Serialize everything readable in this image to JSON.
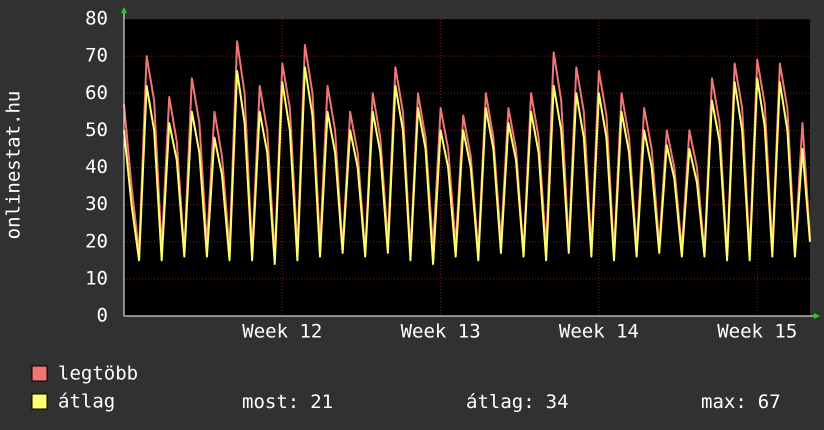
{
  "chart_data": {
    "type": "line",
    "ylabel": "onlinestat.hu",
    "xlim": [
      0,
      91
    ],
    "xticks": [
      {
        "value": 21,
        "label": "Week 12"
      },
      {
        "value": 42,
        "label": "Week 13"
      },
      {
        "value": 63,
        "label": "Week 14"
      },
      {
        "value": 84,
        "label": "Week 15"
      }
    ],
    "ylim": [
      0,
      80
    ],
    "yticks": [
      0,
      10,
      20,
      30,
      40,
      50,
      60,
      70,
      80
    ],
    "grid": true,
    "series": [
      {
        "name": "legtöbb",
        "color": "#f07575",
        "values": [
          57,
          35,
          17,
          70,
          58,
          18,
          59,
          47,
          17,
          64,
          52,
          19,
          55,
          43,
          18,
          74,
          60,
          17,
          62,
          50,
          16,
          68,
          56,
          18,
          73,
          60,
          19,
          62,
          50,
          18,
          55,
          44,
          17,
          60,
          48,
          20,
          67,
          55,
          17,
          60,
          48,
          18,
          56,
          45,
          19,
          54,
          43,
          17,
          60,
          48,
          20,
          56,
          45,
          17,
          60,
          48,
          18,
          71,
          58,
          19,
          67,
          55,
          18,
          66,
          54,
          17,
          60,
          48,
          18,
          56,
          45,
          19,
          50,
          40,
          18,
          50,
          40,
          17,
          64,
          52,
          16,
          68,
          56,
          17,
          69,
          57,
          18,
          68,
          56,
          17,
          52,
          21
        ]
      },
      {
        "name": "átlag",
        "color": "#ffff70",
        "values": [
          50,
          30,
          15,
          62,
          50,
          15,
          52,
          42,
          16,
          55,
          44,
          16,
          48,
          38,
          15,
          66,
          52,
          15,
          55,
          44,
          14,
          63,
          50,
          15,
          67,
          54,
          16,
          55,
          44,
          17,
          50,
          40,
          16,
          55,
          44,
          17,
          62,
          50,
          15,
          56,
          45,
          14,
          50,
          40,
          16,
          50,
          40,
          15,
          56,
          45,
          17,
          52,
          42,
          16,
          55,
          44,
          15,
          62,
          50,
          17,
          60,
          48,
          16,
          60,
          48,
          15,
          55,
          44,
          16,
          50,
          40,
          17,
          46,
          37,
          16,
          45,
          36,
          16,
          58,
          47,
          15,
          63,
          50,
          15,
          64,
          51,
          16,
          63,
          50,
          16,
          45,
          20
        ]
      }
    ],
    "stats": [
      {
        "label": "most:",
        "value": 21
      },
      {
        "label": "átlag:",
        "value": 34
      },
      {
        "label": "max:",
        "value": 67
      }
    ]
  }
}
